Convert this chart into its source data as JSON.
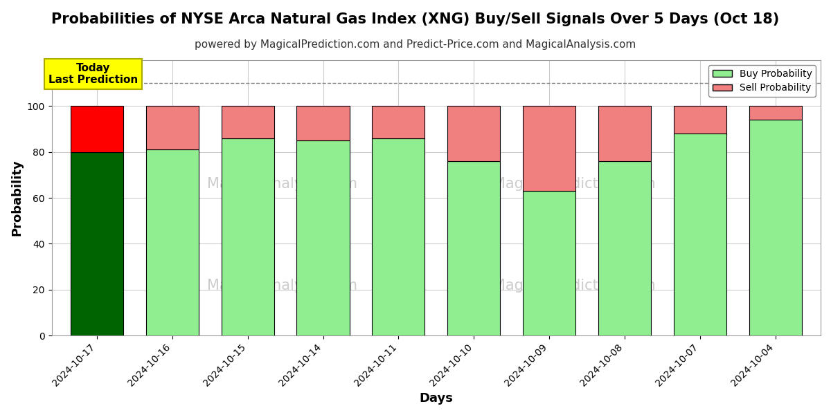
{
  "title": "Probabilities of NYSE Arca Natural Gas Index (XNG) Buy/Sell Signals Over 5 Days (Oct 18)",
  "subtitle": "powered by MagicalPrediction.com and Predict-Price.com and MagicalAnalysis.com",
  "xlabel": "Days",
  "ylabel": "Probability",
  "categories": [
    "2024-10-17",
    "2024-10-16",
    "2024-10-15",
    "2024-10-14",
    "2024-10-11",
    "2024-10-10",
    "2024-10-09",
    "2024-10-08",
    "2024-10-07",
    "2024-10-04"
  ],
  "buy_values": [
    80,
    81,
    86,
    85,
    86,
    76,
    63,
    76,
    88,
    94
  ],
  "sell_values": [
    20,
    19,
    14,
    15,
    14,
    24,
    37,
    24,
    12,
    6
  ],
  "today_bar_buy_color": "#006400",
  "today_bar_sell_color": "#FF0000",
  "normal_bar_buy_color": "#90EE90",
  "normal_bar_sell_color": "#F08080",
  "bar_edge_color": "#000000",
  "ylim": [
    0,
    120
  ],
  "yticks": [
    0,
    20,
    40,
    60,
    80,
    100
  ],
  "dashed_line_y": 110,
  "annotation_text": "Today\nLast Prediction",
  "annotation_bg_color": "#FFFF00",
  "legend_buy_color": "#90EE90",
  "legend_sell_color": "#F08080",
  "watermark_color": "#cccccc",
  "background_color": "#ffffff",
  "grid_color": "#cccccc",
  "title_fontsize": 15,
  "subtitle_fontsize": 11,
  "axis_label_fontsize": 13,
  "tick_fontsize": 10
}
